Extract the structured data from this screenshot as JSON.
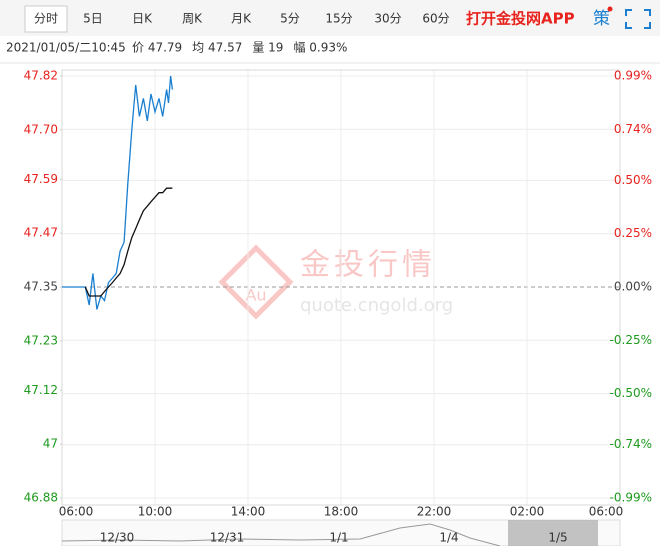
{
  "tabs": [
    "分时",
    "5日",
    "日K",
    "周K",
    "月K",
    "5分",
    "15分",
    "30分",
    "60分"
  ],
  "app_link": "打开金投网APP",
  "strategy_icon": "策",
  "info": {
    "datetime": "2021/01/05/二10:45",
    "items": [
      "价 47.79",
      "均 47.57",
      "量 19",
      "幅 0.93%"
    ]
  },
  "watermark": {
    "brand": "金投行情",
    "site": "quote.cngold.org",
    "badge": "Au"
  },
  "navigator": {
    "dates": [
      "12/30",
      "12/31",
      "1/1",
      "1/4",
      "1/5"
    ]
  },
  "chart_data": {
    "type": "line",
    "x": [
      0,
      0.5,
      1.0,
      1.17,
      1.33,
      1.5,
      1.67,
      1.83,
      2.0,
      2.17,
      2.33,
      2.5,
      2.67,
      2.83,
      3.0,
      3.17,
      3.33,
      3.5,
      3.67,
      3.83,
      4.0,
      4.17,
      4.33,
      4.5,
      4.58,
      4.67,
      4.75
    ],
    "series": [
      {
        "color": "#1a7fd0",
        "values": [
          47.35,
          47.35,
          47.35,
          47.31,
          47.38,
          47.3,
          47.33,
          47.32,
          47.36,
          47.37,
          47.38,
          47.43,
          47.45,
          47.58,
          47.7,
          47.8,
          47.73,
          47.77,
          47.72,
          47.78,
          47.74,
          47.77,
          47.73,
          47.79,
          47.76,
          47.82,
          47.79
        ]
      },
      {
        "color": "#111111",
        "values": [
          null,
          null,
          47.35,
          47.33,
          47.33,
          47.33,
          47.33,
          47.34,
          47.35,
          47.36,
          47.37,
          47.38,
          47.4,
          47.43,
          47.46,
          47.48,
          47.5,
          47.52,
          47.53,
          47.54,
          47.55,
          47.56,
          47.56,
          47.57,
          47.57,
          47.57,
          47.57
        ]
      }
    ],
    "xlim": [
      0,
      24
    ],
    "xticks": [
      {
        "value": 0,
        "label": "06:00"
      },
      {
        "value": 4,
        "label": "10:00"
      },
      {
        "value": 8,
        "label": "14:00"
      },
      {
        "value": 12,
        "label": "18:00"
      },
      {
        "value": 16,
        "label": "22:00"
      },
      {
        "value": 20,
        "label": "02:00"
      },
      {
        "value": 24,
        "label": "06:00"
      }
    ],
    "ylim": [
      46.88,
      47.82
    ],
    "yticks": [
      46.88,
      47.0,
      {
        "value": 47.12,
        "label": "47.12"
      },
      47.23,
      47.35,
      47.47,
      47.59,
      {
        "value": 47.7,
        "label": "47.70"
      },
      47.82
    ],
    "y2lim": [
      -0.99,
      0.99
    ],
    "y2ticks": [
      {
        "value": -0.99,
        "label": "-0.99%"
      },
      {
        "value": -0.74,
        "label": "-0.74%"
      },
      {
        "value": -0.5,
        "label": "-0.50%"
      },
      {
        "value": -0.25,
        "label": "-0.25%"
      },
      {
        "value": 0,
        "label": "0.00%"
      },
      {
        "value": 0.25,
        "label": "0.25%"
      },
      {
        "value": 0.5,
        "label": "0.50%"
      },
      {
        "value": 0.74,
        "label": "0.74%"
      },
      {
        "value": 0.99,
        "label": "0.99%"
      }
    ],
    "grid": true,
    "up_color": "#e8231e",
    "down_color": "#1e9a1e",
    "flat_color": "#444444"
  }
}
